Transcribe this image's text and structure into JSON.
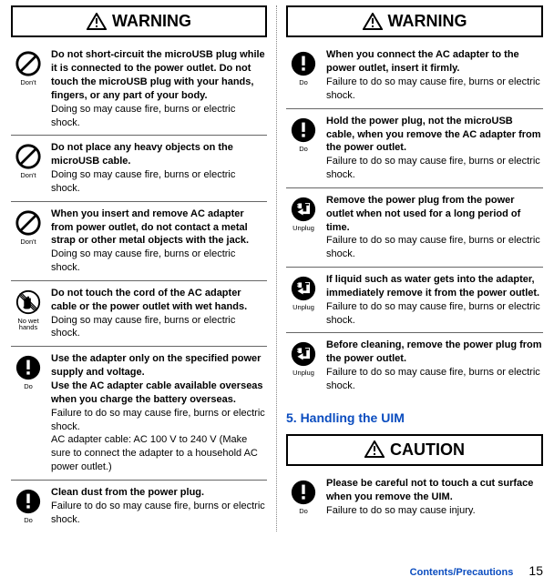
{
  "colors": {
    "accent": "#0a4cbf",
    "text": "#000000",
    "border": "#666666",
    "background": "#ffffff"
  },
  "labels": {
    "warning": "WARNING",
    "caution": "CAUTION",
    "dont": "Don't",
    "do": "Do",
    "unplug": "Unplug",
    "nowethands": "No wet hands"
  },
  "left": [
    {
      "icon": "dont",
      "bold": "Do not short-circuit the microUSB plug while it is connected to the power outlet. Do not touch the microUSB plug with your hands, fingers, or any part of your body.",
      "body": "Doing so may cause fire, burns or electric shock."
    },
    {
      "icon": "dont",
      "bold": "Do not place any heavy objects on the microUSB cable.",
      "body": "Doing so may cause fire, burns or electric shock."
    },
    {
      "icon": "dont",
      "bold": "When you insert and remove AC adapter from power outlet, do not contact a metal strap or other metal objects with the jack.",
      "body": "Doing so may cause fire, burns or electric shock."
    },
    {
      "icon": "nowethands",
      "bold": "Do not touch the cord of the AC adapter cable or the power outlet with wet hands.",
      "body": "Doing so may cause fire, burns or electric shock."
    },
    {
      "icon": "do",
      "bold": "Use the adapter only on the specified power supply and voltage.\nUse the AC adapter cable available overseas when you charge the battery overseas.",
      "body": "Failure to do so may cause fire, burns or electric shock.\nAC adapter cable: AC 100 V to 240 V (Make sure to connect the adapter to a household AC power outlet.)"
    },
    {
      "icon": "do",
      "bold": "Clean dust from the power plug.",
      "body": "Failure to do so may cause fire, burns or electric shock."
    }
  ],
  "right": [
    {
      "icon": "do",
      "bold": "When you connect the AC adapter to the power outlet, insert it firmly.",
      "body": "Failure to do so may cause fire, burns or electric shock."
    },
    {
      "icon": "do",
      "bold": "Hold the power plug, not the microUSB cable, when you remove the AC adapter from the power outlet.",
      "body": "Failure to do so may cause fire, burns or electric shock."
    },
    {
      "icon": "unplug",
      "bold": "Remove the power plug from the power outlet when not used for a long period of time.",
      "body": "Failure to do so may cause fire, burns or electric shock."
    },
    {
      "icon": "unplug",
      "bold": "If liquid such as water gets into the adapter, immediately remove it from the power outlet.",
      "body": "Failure to do so may cause fire, burns or electric shock."
    },
    {
      "icon": "unplug",
      "bold": "Before cleaning, remove the power plug from the power outlet.",
      "body": "Failure to do so may cause fire, burns or electric shock."
    }
  ],
  "section5": "5. Handling the UIM",
  "caution": [
    {
      "icon": "do",
      "bold": "Please be careful not to touch a cut surface when you remove the UIM.",
      "body": "Failure to do so may cause injury."
    }
  ],
  "footer": {
    "section": "Contents/Precautions",
    "page": "15"
  }
}
